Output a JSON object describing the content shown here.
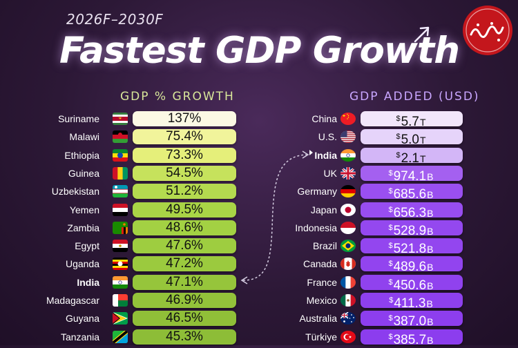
{
  "header": {
    "subtitle": "2026F–2030F",
    "title": "Fastest GDP Growth"
  },
  "chart_data": [
    {
      "type": "bar",
      "title": "GDP % GROWTH",
      "unit": "%",
      "categories": [
        "Suriname",
        "Malawi",
        "Ethiopia",
        "Guinea",
        "Uzbekistan",
        "Yemen",
        "Zambia",
        "Egypt",
        "Uganda",
        "India",
        "Madagascar",
        "Guyana",
        "Tanzania"
      ],
      "values": [
        137,
        75.4,
        73.3,
        54.5,
        51.2,
        49.5,
        48.6,
        47.6,
        47.2,
        47.1,
        46.9,
        46.5,
        45.3
      ],
      "labels": [
        "137%",
        "75.4%",
        "73.3%",
        "54.5%",
        "51.2%",
        "49.5%",
        "48.6%",
        "47.6%",
        "47.2%",
        "47.1%",
        "46.9%",
        "46.5%",
        "45.3%"
      ],
      "highlight": "India",
      "colors": [
        "#fcf9e4",
        "#f1f49b",
        "#e5ef7a",
        "#c6e25c",
        "#b4da4f",
        "#a9d446",
        "#a3d143",
        "#9ecd40",
        "#9bca3e",
        "#96c53b",
        "#93c23a",
        "#90bf38",
        "#8dbd37"
      ]
    },
    {
      "type": "bar",
      "title": "GDP ADDED (USD)",
      "unit": "USD",
      "categories": [
        "China",
        "U.S.",
        "India",
        "UK",
        "Germany",
        "Japan",
        "Indonesia",
        "Brazil",
        "Canada",
        "France",
        "Mexico",
        "Australia",
        "Türkiye"
      ],
      "values": [
        5.7,
        5.0,
        2.1,
        0.9741,
        0.6856,
        0.6563,
        0.5289,
        0.5218,
        0.4896,
        0.4506,
        0.4113,
        0.387,
        0.3857
      ],
      "values_unit": "trillion USD",
      "display": [
        {
          "cur": "$",
          "num": "5.7",
          "unit": "T"
        },
        {
          "cur": "$",
          "num": "5.0",
          "unit": "T"
        },
        {
          "cur": "$",
          "num": "2.1",
          "unit": "T"
        },
        {
          "cur": "$",
          "num": "974.1",
          "unit": "B"
        },
        {
          "cur": "$",
          "num": "685.6",
          "unit": "B"
        },
        {
          "cur": "$",
          "num": "656.3",
          "unit": "B"
        },
        {
          "cur": "$",
          "num": "528.9",
          "unit": "B"
        },
        {
          "cur": "$",
          "num": "521.8",
          "unit": "B"
        },
        {
          "cur": "$",
          "num": "489.6",
          "unit": "B"
        },
        {
          "cur": "$",
          "num": "450.6",
          "unit": "B"
        },
        {
          "cur": "$",
          "num": "411.3",
          "unit": "B"
        },
        {
          "cur": "$",
          "num": "387.0",
          "unit": "B"
        },
        {
          "cur": "$",
          "num": "385.7",
          "unit": "B"
        }
      ],
      "highlight": "India",
      "colors": [
        "#f2e6fb",
        "#e6d4fa",
        "#d3b6f7",
        "#a460f0",
        "#9a4ff0",
        "#984df0",
        "#9448ef",
        "#9346ef",
        "#9244ef",
        "#9042ee",
        "#8e40ee",
        "#8d3eee",
        "#8c3dee"
      ]
    }
  ],
  "flags": {
    "left": [
      "suriname-flag",
      "malawi-flag",
      "ethiopia-flag",
      "guinea-flag",
      "uzbekistan-flag",
      "yemen-flag",
      "zambia-flag",
      "egypt-flag",
      "uganda-flag",
      "india-flag",
      "madagascar-flag",
      "guyana-flag",
      "tanzania-flag"
    ],
    "right": [
      "china-flag",
      "usa-flag",
      "india-flag",
      "uk-flag",
      "germany-flag",
      "japan-flag",
      "indonesia-flag",
      "brazil-flag",
      "canada-flag",
      "france-flag",
      "mexico-flag",
      "australia-flag",
      "turkiye-flag"
    ]
  },
  "colors": {
    "background": "#2c1836",
    "left_header": "#d8e69a",
    "right_header": "#c9a6ff",
    "logo": "#c4161c"
  },
  "logo": {
    "name": "watermark-logo"
  }
}
